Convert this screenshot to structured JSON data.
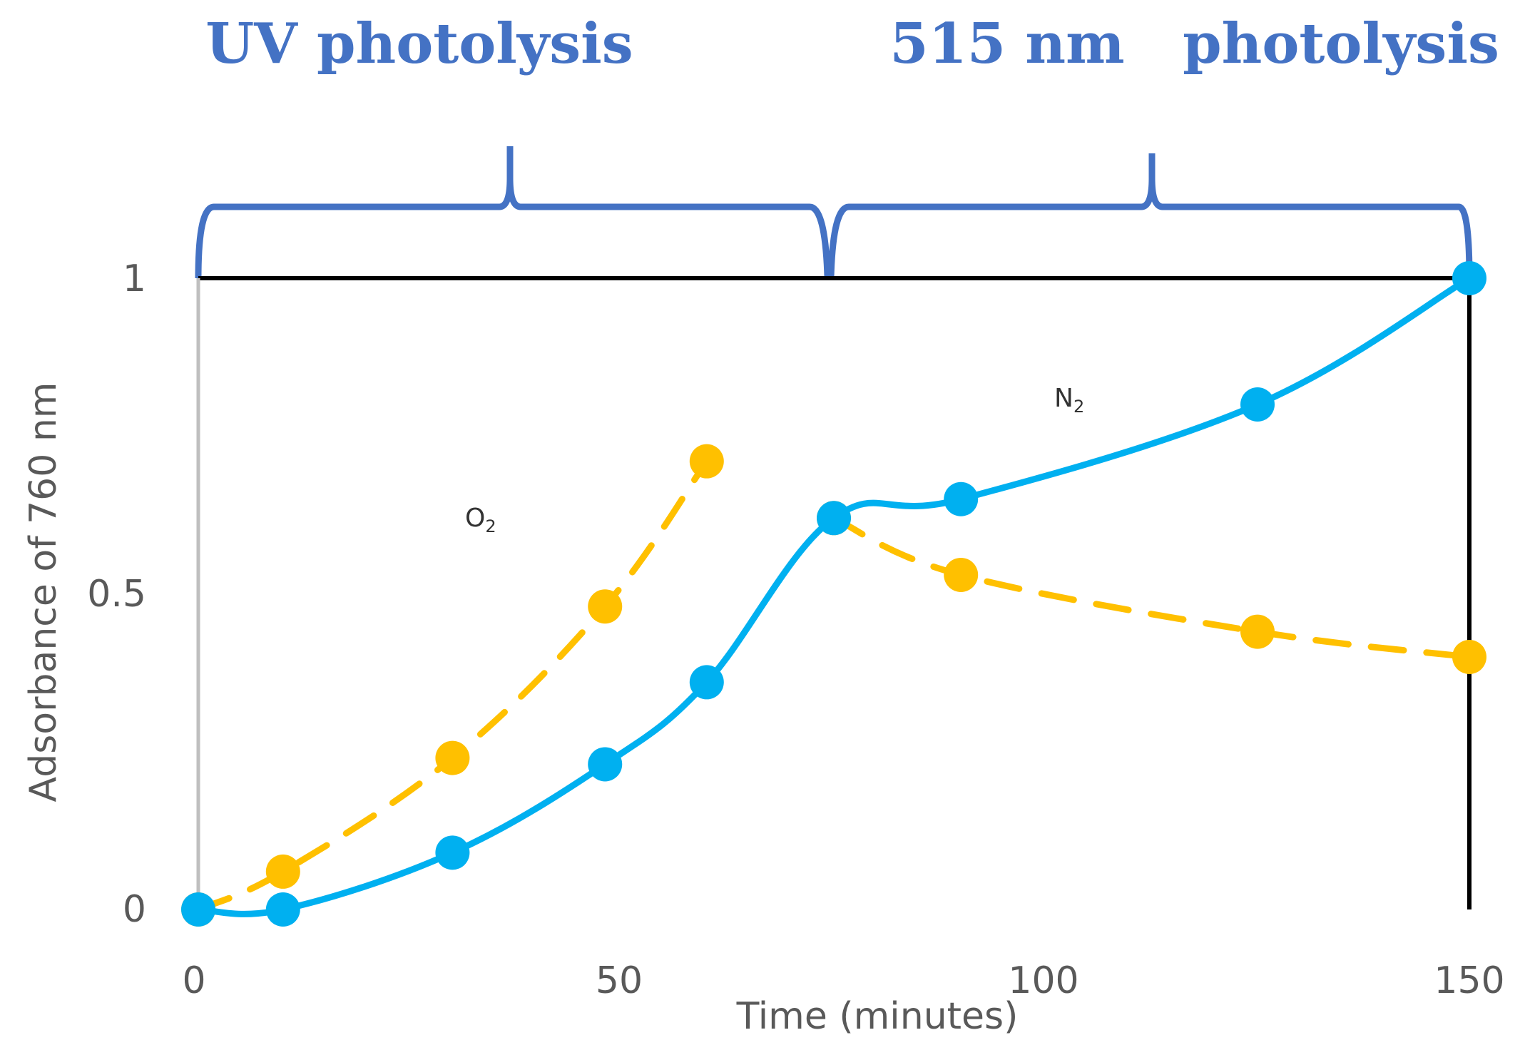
{
  "chart_data": {
    "type": "line",
    "title": "",
    "xlabel": "Time  (minutes)",
    "ylabel": "Adsorbance of 760 nm",
    "xlim": [
      0,
      150
    ],
    "ylim": [
      0,
      1
    ],
    "xticks": [
      "0",
      "50",
      "100",
      "150"
    ],
    "yticks": [
      "0",
      "0.5",
      "1"
    ],
    "grid": false,
    "annotations": [
      {
        "text": "UV photolysis",
        "x_from": 0,
        "x_to": 74
      },
      {
        "text": "515 nm",
        "x_from": 74,
        "x_to": 150
      },
      {
        "text": "photolysis",
        "x_from": 74,
        "x_to": 150
      }
    ],
    "series": [
      {
        "name": "N2",
        "label_main": "N",
        "label_sub": "2",
        "style": "solid",
        "color": "#00b0f0",
        "x": [
          0,
          10,
          30,
          48,
          60,
          75,
          90,
          125,
          150
        ],
        "y": [
          0,
          0,
          0.09,
          0.23,
          0.36,
          0.62,
          0.65,
          0.8,
          1.0
        ]
      },
      {
        "name": "O2",
        "label_main": "O",
        "label_sub": "2",
        "style": "dashed",
        "color": "#ffc000",
        "x": [
          0,
          10,
          30,
          48,
          60,
          75,
          90,
          125,
          150
        ],
        "y": [
          0,
          0.06,
          0.24,
          0.48,
          0.71,
          0.62,
          0.53,
          0.44,
          0.4
        ],
        "segments": [
          [
            0,
            4
          ],
          [
            5,
            8
          ]
        ]
      }
    ]
  },
  "colors": {
    "annotation": "#4472c4",
    "axis_left": "#bfbfbf",
    "frame": "#000000"
  }
}
